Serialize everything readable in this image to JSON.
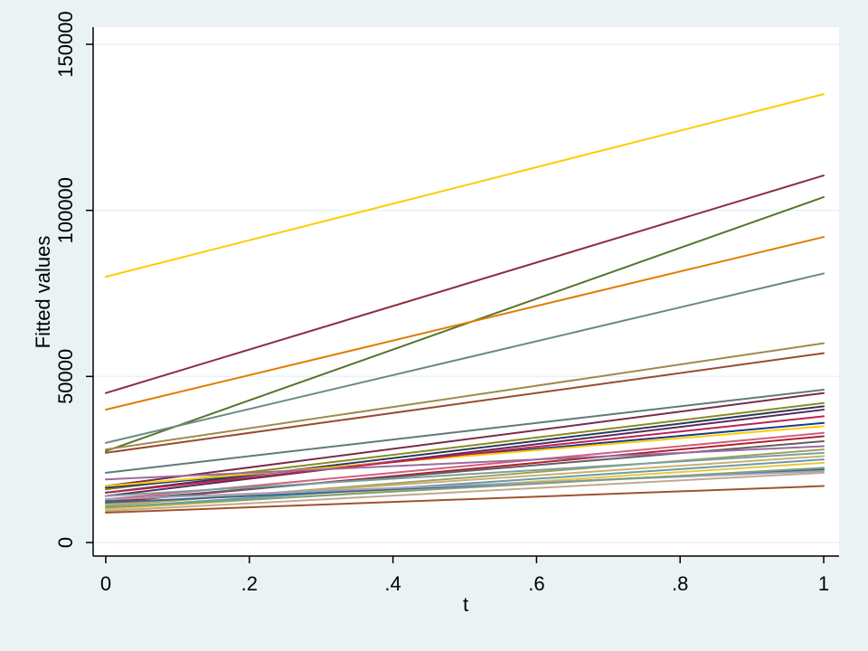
{
  "chart_data": {
    "type": "line",
    "title": "",
    "xlabel": "t",
    "ylabel": "Fitted values",
    "xlim": [
      0,
      1
    ],
    "ylim": [
      0,
      150000
    ],
    "x_ticks": [
      0,
      0.2,
      0.4,
      0.6,
      0.8,
      1
    ],
    "x_tick_labels": [
      "0",
      ".2",
      ".4",
      ".6",
      ".8",
      "1"
    ],
    "y_ticks": [
      0,
      50000,
      100000,
      150000
    ],
    "y_tick_labels": [
      "0",
      "50000",
      "100000",
      "150000"
    ],
    "grid": "horizontal",
    "legend": "none",
    "colors": {
      "outer_background": "#eaf2f3",
      "plot_background": "#ffffff",
      "grid": "#eaf2f3",
      "axis": "#000000"
    },
    "x": [
      0,
      1
    ],
    "series": [
      {
        "values": [
          80000,
          135000
        ],
        "color": "#ffcc00"
      },
      {
        "values": [
          45000,
          110500
        ],
        "color": "#8b2e3e"
      },
      {
        "values": [
          27500,
          104000
        ],
        "color": "#55752f"
      },
      {
        "values": [
          40000,
          92000
        ],
        "color": "#e07c00"
      },
      {
        "values": [
          30000,
          81000
        ],
        "color": "#6a8a82"
      },
      {
        "values": [
          28000,
          60000
        ],
        "color": "#a08a4a"
      },
      {
        "values": [
          27000,
          57000
        ],
        "color": "#9a4a30"
      },
      {
        "values": [
          21000,
          46000
        ],
        "color": "#607a7a"
      },
      {
        "values": [
          17000,
          45000
        ],
        "color": "#7a2a4a"
      },
      {
        "values": [
          16000,
          42000
        ],
        "color": "#8a8a20"
      },
      {
        "values": [
          15000,
          41000
        ],
        "color": "#2a3a5a"
      },
      {
        "values": [
          14000,
          40000
        ],
        "color": "#5a2a5a"
      },
      {
        "values": [
          16500,
          36000
        ],
        "color": "#1a3a8a"
      },
      {
        "values": [
          17000,
          35000
        ],
        "color": "#ffcc00"
      },
      {
        "values": [
          15000,
          38000
        ],
        "color": "#c02050"
      },
      {
        "values": [
          13000,
          33000
        ],
        "color": "#d06080"
      },
      {
        "values": [
          12000,
          32000
        ],
        "color": "#b02030"
      },
      {
        "values": [
          12500,
          30500
        ],
        "color": "#606060"
      },
      {
        "values": [
          19000,
          29000
        ],
        "color": "#9a6aa0"
      },
      {
        "values": [
          11000,
          28000
        ],
        "color": "#a0a060"
      },
      {
        "values": [
          14000,
          27000
        ],
        "color": "#7aa0a0"
      },
      {
        "values": [
          11500,
          26000
        ],
        "color": "#c8b070"
      },
      {
        "values": [
          10500,
          25000
        ],
        "color": "#6a9aa8"
      },
      {
        "values": [
          10000,
          24000
        ],
        "color": "#e8c840"
      },
      {
        "values": [
          12000,
          22000
        ],
        "color": "#3a6a8a"
      },
      {
        "values": [
          13000,
          21500
        ],
        "color": "#a0a0c0"
      },
      {
        "values": [
          9500,
          21000
        ],
        "color": "#c0a890"
      },
      {
        "values": [
          10500,
          22500
        ],
        "color": "#80a080"
      },
      {
        "values": [
          9000,
          17000
        ],
        "color": "#a0522d"
      }
    ]
  }
}
